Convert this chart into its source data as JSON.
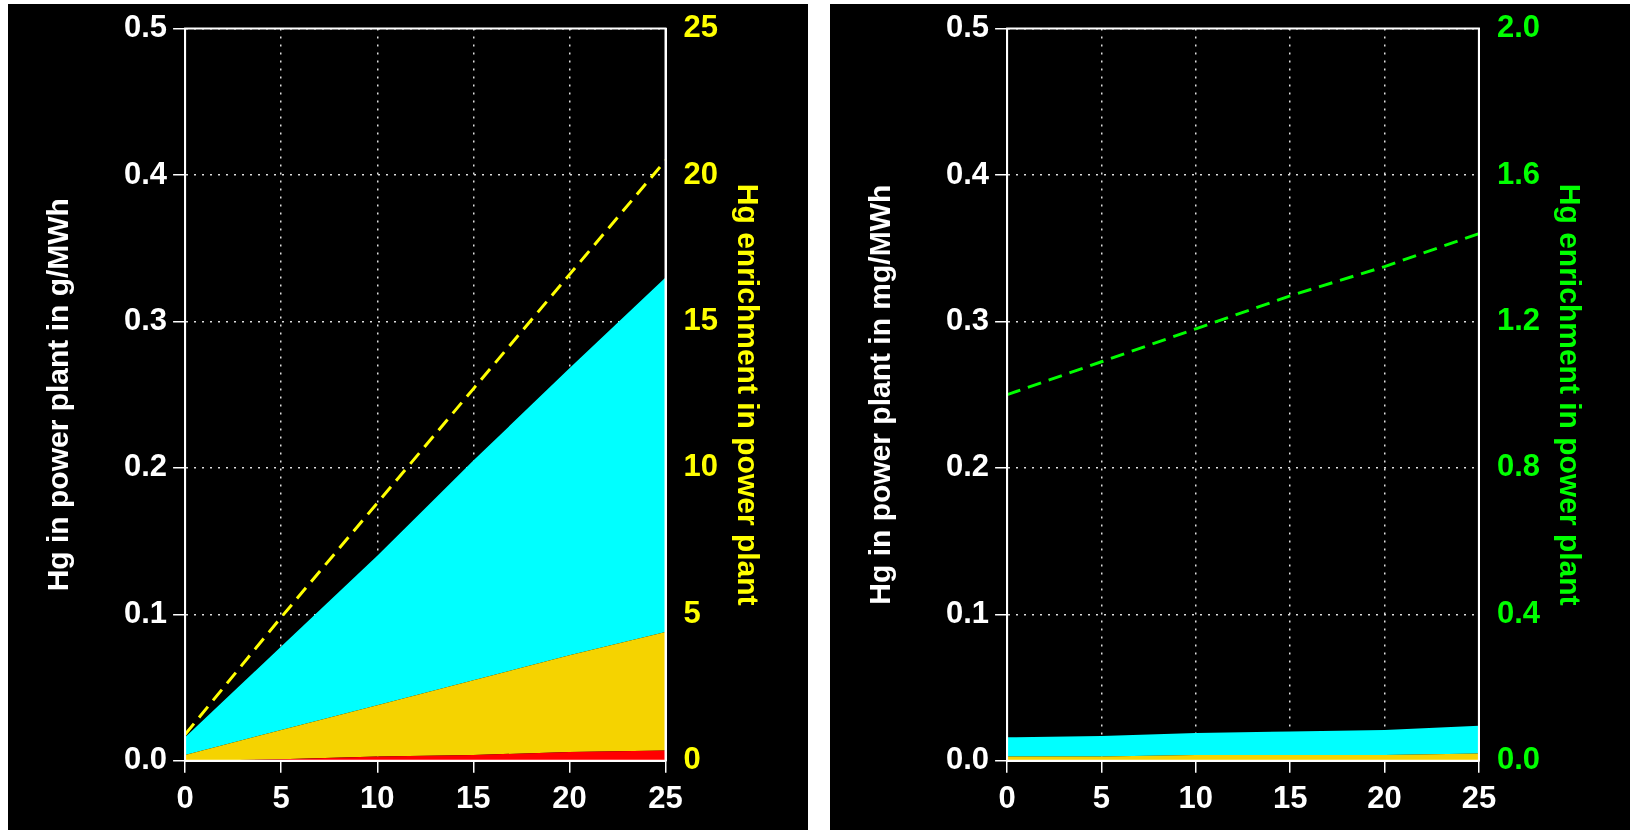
{
  "chart_data": [
    {
      "type": "area",
      "stacked": true,
      "grid": true,
      "ylabel": "Hg in power plant in g/MWh",
      "y2label": "Hg enrichment in power plant",
      "xlim": [
        0,
        25
      ],
      "xticks": [
        0,
        5,
        10,
        15,
        20,
        25
      ],
      "ylim": [
        0,
        0.5
      ],
      "yticks": [
        {
          "value": 0,
          "label": "0.0"
        },
        0.1,
        0.2,
        0.3,
        0.4,
        0.5
      ],
      "y2lim": [
        0,
        25
      ],
      "y2ticks": [
        0,
        5,
        10,
        15,
        20,
        25
      ],
      "x": [
        0,
        5,
        10,
        15,
        20,
        25
      ],
      "series": [
        {
          "color": "#ff0000",
          "values": [
            0,
            0.001,
            0.003,
            0.004,
            0.006,
            0.007
          ]
        },
        {
          "color": "#f5d300",
          "values": [
            0.004,
            0.02,
            0.035,
            0.051,
            0.066,
            0.081
          ]
        },
        {
          "color": "#00ffff",
          "values": [
            0.012,
            0.057,
            0.102,
            0.15,
            0.196,
            0.242
          ]
        },
        {
          "type": "line",
          "axis": "y2",
          "line_style": "dashed",
          "color": "#ffff00",
          "values": [
            0.9,
            4.9,
            8.8,
            12.7,
            16.6,
            20.5
          ]
        }
      ]
    },
    {
      "type": "area",
      "stacked": true,
      "grid": true,
      "ylabel": "Hg in power plant in mg/MWh",
      "y2label": "Hg enrichment in power plant",
      "xlim": [
        0,
        25
      ],
      "xticks": [
        0,
        5,
        10,
        15,
        20,
        25
      ],
      "ylim": [
        0,
        0.5
      ],
      "yticks": [
        {
          "value": 0,
          "label": "0.0"
        },
        0.1,
        0.2,
        0.3,
        0.4,
        0.5
      ],
      "y2lim": [
        0,
        2
      ],
      "y2ticks": [
        {
          "value": 0,
          "label": "0.0"
        },
        0.4,
        0.8,
        1.2,
        1.6,
        {
          "value": 2,
          "label": "2.0"
        }
      ],
      "x": [
        0,
        5,
        10,
        15,
        20,
        25
      ],
      "series": [
        {
          "color": "#f5d300",
          "values": [
            0.003,
            0.003,
            0.004,
            0.004,
            0.004,
            0.005
          ]
        },
        {
          "color": "#00ffff",
          "values": [
            0.013,
            0.014,
            0.015,
            0.016,
            0.017,
            0.019
          ]
        },
        {
          "type": "line",
          "axis": "y2",
          "line_style": "dashed",
          "color": "#00ff00",
          "values": [
            1.0,
            1.09,
            1.18,
            1.27,
            1.35,
            1.44
          ]
        }
      ]
    }
  ]
}
